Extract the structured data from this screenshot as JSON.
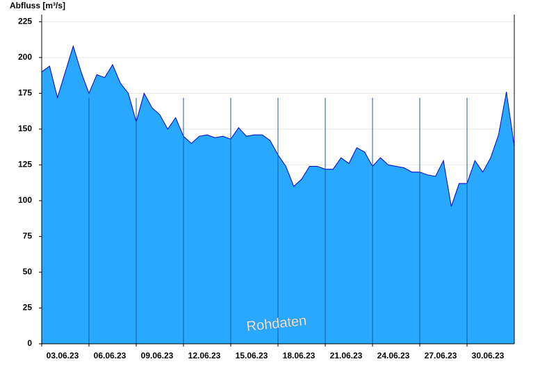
{
  "chart_data": {
    "type": "area",
    "y_label": "Abfluss [m³/s]",
    "watermark": "Rohdaten",
    "x": [
      3,
      3.5,
      4,
      4.5,
      5,
      5.5,
      6,
      6.5,
      7,
      7.5,
      8,
      8.5,
      9,
      9.5,
      10,
      10.5,
      11,
      11.5,
      12,
      12.5,
      13,
      13.5,
      14,
      14.5,
      15,
      15.5,
      16,
      16.5,
      17,
      17.5,
      18,
      18.5,
      19,
      19.5,
      20,
      20.5,
      21,
      21.5,
      22,
      22.5,
      23,
      23.5,
      24,
      24.5,
      25,
      25.5,
      26,
      26.5,
      27,
      27.5,
      28,
      28.5,
      29,
      29.5,
      30,
      30.5,
      31,
      31.5,
      32,
      32.5,
      33
    ],
    "series": [
      {
        "name": "Abfluss",
        "color": "#29a8ff",
        "line_color": "#0000cc",
        "values": [
          190,
          194,
          172,
          190,
          208,
          190,
          175,
          188,
          186,
          195,
          182,
          175,
          155,
          175,
          165,
          160,
          150,
          158,
          145,
          140,
          145,
          146,
          144,
          145,
          143,
          151,
          145,
          146,
          146,
          142,
          132,
          124,
          110,
          115,
          124,
          124,
          122,
          122,
          130,
          126,
          137,
          134,
          124,
          130,
          125,
          124,
          123,
          120,
          120,
          118,
          117,
          128,
          96,
          112,
          112,
          128,
          120,
          130,
          146,
          176,
          138
        ]
      }
    ],
    "xlim": [
      3,
      33
    ],
    "xticks": [
      {
        "value": 3,
        "label": "03.06.23"
      },
      {
        "value": 6,
        "label": "06.06.23"
      },
      {
        "value": 9,
        "label": "09.06.23"
      },
      {
        "value": 12,
        "label": "12.06.23"
      },
      {
        "value": 15,
        "label": "15.06.23"
      },
      {
        "value": 18,
        "label": "18.06.23"
      },
      {
        "value": 21,
        "label": "21.06.23"
      },
      {
        "value": 24,
        "label": "24.06.23"
      },
      {
        "value": 27,
        "label": "27.06.23"
      },
      {
        "value": 30,
        "label": "30.06.23"
      }
    ],
    "ylim": [
      0,
      230
    ],
    "yticks": [
      0,
      25,
      50,
      75,
      100,
      125,
      150,
      175,
      200,
      225
    ],
    "grid": true
  }
}
